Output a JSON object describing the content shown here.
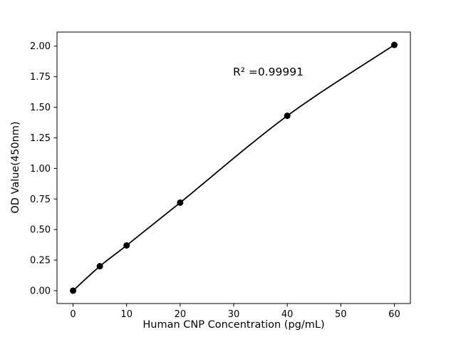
{
  "chart_data": {
    "type": "line",
    "x": [
      0,
      5,
      10,
      20,
      40,
      60
    ],
    "y": [
      0.0,
      0.2,
      0.37,
      0.72,
      1.43,
      2.01
    ],
    "title": "",
    "xlabel": "Human CNP Concentration (pg/mL)",
    "ylabel": "OD Value(450nm)",
    "annotation": "R² =0.99991",
    "xlim": [
      -3,
      63
    ],
    "ylim": [
      -0.105,
      2.115
    ],
    "xticks": [
      0,
      10,
      20,
      30,
      40,
      50,
      60
    ],
    "yticks": [
      0.0,
      0.25,
      0.5,
      0.75,
      1.0,
      1.25,
      1.5,
      1.75,
      2.0
    ],
    "line_color": "#000000",
    "marker_color": "#000000",
    "background_color": "#ffffff",
    "legend": "none",
    "grid": false
  }
}
